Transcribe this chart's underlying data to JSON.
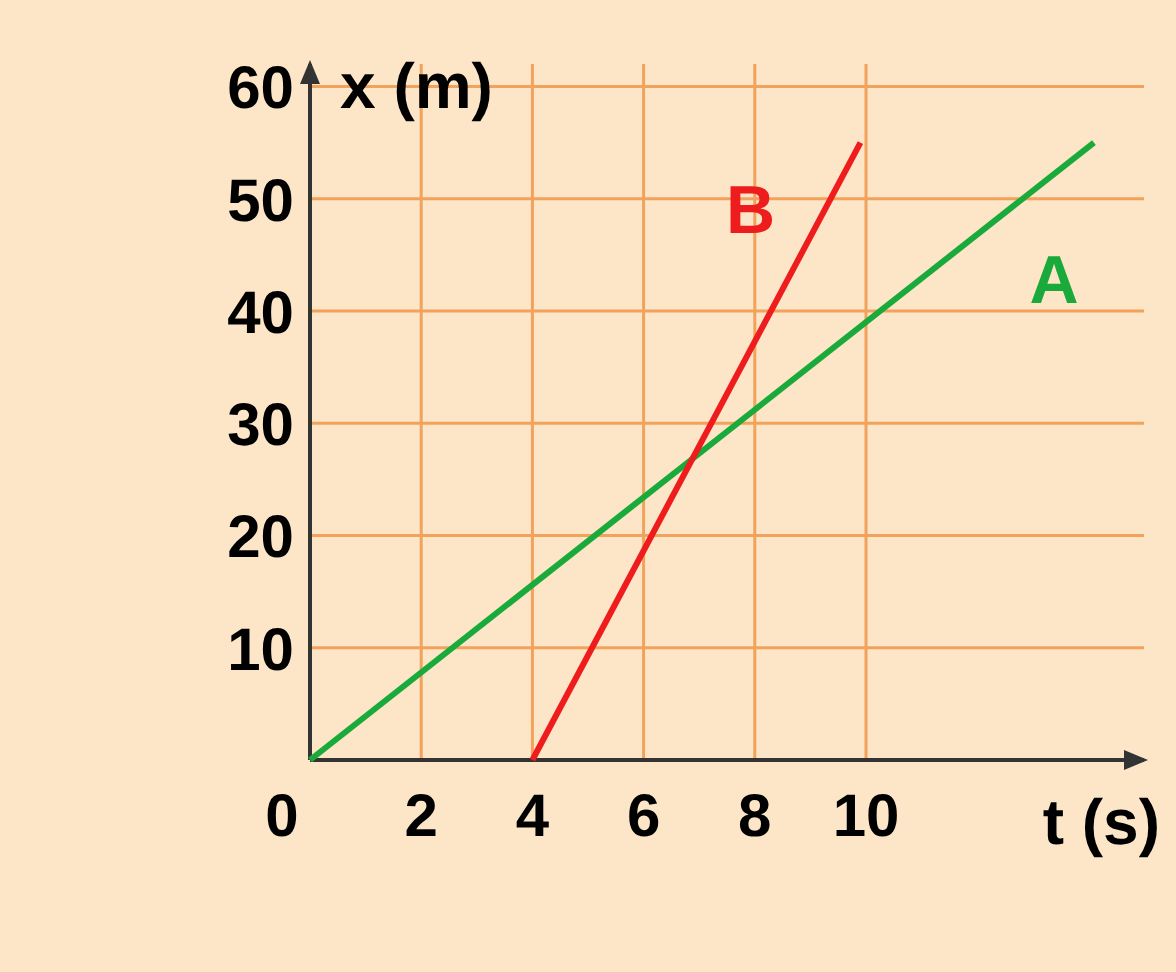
{
  "chart_data": {
    "type": "line",
    "xlabel": "t (s)",
    "ylabel": "x (m)",
    "xlim": [
      0,
      15
    ],
    "ylim": [
      0,
      62
    ],
    "xticks": [
      0,
      2,
      4,
      6,
      8,
      10
    ],
    "yticks": [
      10,
      20,
      30,
      40,
      50,
      60
    ],
    "grid": true,
    "series": [
      {
        "name": "A",
        "color": "#1aaa3c",
        "x": [
          0,
          14.1
        ],
        "values": [
          0,
          55
        ]
      },
      {
        "name": "B",
        "color": "#ee1c1c",
        "x": [
          4,
          9.9
        ],
        "values": [
          0,
          55
        ]
      }
    ]
  }
}
